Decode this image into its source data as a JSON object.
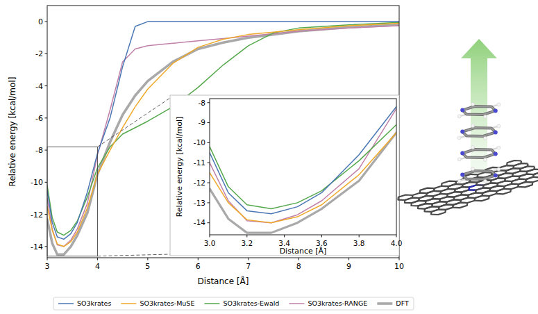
{
  "chart_data": [
    {
      "type": "line",
      "xlabel": "Distance [Å]",
      "ylabel": "Relative energy [kcal/mol]",
      "x": [
        3.0,
        3.1,
        3.2,
        3.33,
        3.47,
        3.6,
        3.8,
        4.0,
        4.25,
        4.5,
        4.75,
        5.0,
        5.5,
        6.0,
        6.5,
        7.0,
        7.5,
        8.0,
        9.0,
        10.0
      ],
      "series": [
        {
          "name": "SO3krates",
          "color": "#4a77b4",
          "values": [
            -10.5,
            -12.5,
            -13.4,
            -13.55,
            -13.2,
            -12.5,
            -10.6,
            -8.2,
            -6.0,
            -2.8,
            -0.3,
            0.0,
            0.0,
            0.0,
            0.0,
            0.0,
            0.0,
            0.0,
            0.0,
            0.0
          ]
        },
        {
          "name": "SO3krates-MuSE",
          "color": "#efa92a",
          "values": [
            -11.5,
            -13.0,
            -13.85,
            -14.0,
            -13.7,
            -13.1,
            -11.6,
            -9.5,
            -8.0,
            -6.6,
            -5.3,
            -4.2,
            -2.6,
            -1.6,
            -1.1,
            -0.8,
            -0.65,
            -0.5,
            -0.25,
            -0.1
          ]
        },
        {
          "name": "SO3krates-Ewald",
          "color": "#55a84c",
          "values": [
            -10.2,
            -12.2,
            -13.1,
            -13.3,
            -13.0,
            -12.4,
            -10.9,
            -9.1,
            -7.8,
            -7.0,
            -6.6,
            -6.2,
            -5.3,
            -4.1,
            -2.7,
            -1.5,
            -0.7,
            -0.4,
            -0.2,
            -0.05
          ]
        },
        {
          "name": "SO3krates-RANGE",
          "color": "#c080a8",
          "values": [
            -11.0,
            -12.9,
            -13.9,
            -14.0,
            -13.6,
            -12.9,
            -11.3,
            -8.3,
            -5.5,
            -2.5,
            -1.7,
            -1.5,
            -1.35,
            -1.2,
            -1.05,
            -0.9,
            -0.75,
            -0.6,
            -0.4,
            -0.25
          ]
        },
        {
          "name": "DFT",
          "color": "#a9a9a9",
          "values": [
            -12.3,
            -13.8,
            -14.5,
            -14.5,
            -14.0,
            -13.3,
            -11.9,
            -9.5,
            -7.5,
            -5.8,
            -4.6,
            -3.7,
            -2.5,
            -1.7,
            -1.3,
            -1.0,
            -0.8,
            -0.6,
            -0.35,
            -0.2
          ]
        }
      ],
      "xlim": [
        3,
        10
      ],
      "ylim": [
        -14.7,
        1.0
      ],
      "xticks": [
        3,
        4,
        5,
        6,
        7,
        8,
        9,
        10
      ],
      "yticks": [
        -14,
        -12,
        -10,
        -8,
        -6,
        -4,
        -2,
        0
      ],
      "legend": "bottom"
    },
    {
      "type": "line",
      "xlabel": "Distance [Å]",
      "ylabel": "Relative energy [kcal/mol]",
      "x": [
        3.0,
        3.1,
        3.2,
        3.33,
        3.47,
        3.6,
        3.8,
        4.0
      ],
      "series": [
        {
          "color": "#4a77b4",
          "values": [
            -10.5,
            -12.5,
            -13.4,
            -13.55,
            -13.2,
            -12.5,
            -10.6,
            -8.2
          ]
        },
        {
          "color": "#efa92a",
          "values": [
            -11.5,
            -13.0,
            -13.85,
            -14.0,
            -13.7,
            -13.1,
            -11.6,
            -9.5
          ]
        },
        {
          "color": "#55a84c",
          "values": [
            -10.2,
            -12.2,
            -13.1,
            -13.3,
            -13.0,
            -12.4,
            -10.9,
            -9.1
          ]
        },
        {
          "color": "#c080a8",
          "values": [
            -11.0,
            -12.9,
            -13.9,
            -14.0,
            -13.6,
            -12.9,
            -11.3,
            -8.3
          ]
        },
        {
          "color": "#a9a9a9",
          "values": [
            -12.3,
            -13.8,
            -14.5,
            -14.5,
            -14.0,
            -13.3,
            -11.9,
            -9.5
          ]
        }
      ],
      "xlim": [
        3,
        4
      ],
      "ylim": [
        -14.6,
        -7.8
      ],
      "xticks": [
        {
          "value": 3,
          "label": "3.0"
        },
        {
          "value": 3.2,
          "label": "3.2"
        },
        {
          "value": 3.4,
          "label": "3.4"
        },
        {
          "value": 3.6,
          "label": "3.6"
        },
        {
          "value": 3.8,
          "label": "3.8"
        },
        {
          "value": 4,
          "label": "4.0"
        }
      ],
      "yticks": [
        -14,
        -13,
        -12,
        -11,
        -10,
        -9,
        -8
      ]
    }
  ]
}
